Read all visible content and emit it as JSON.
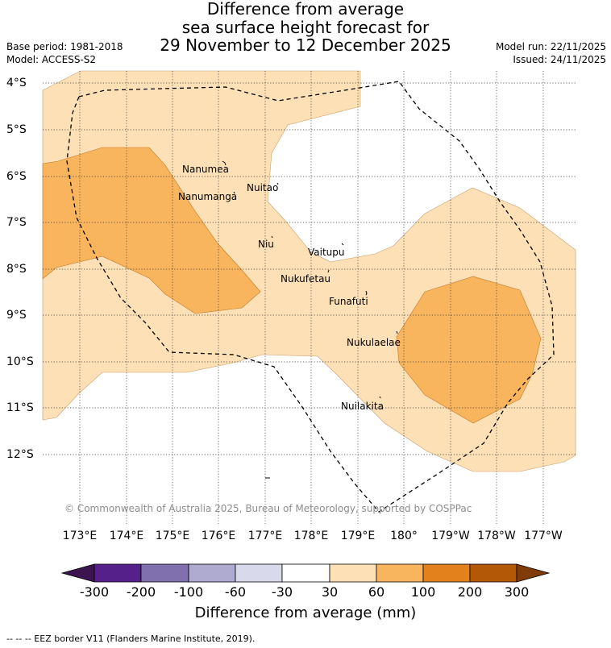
{
  "title": {
    "line1": "Difference from average",
    "line2": "sea surface height forecast for",
    "line3": "29 November to 12 December 2025"
  },
  "meta": {
    "base_period": "Base period: 1981-2018",
    "model": "Model: ACCESS-S2",
    "model_run": "Model run: 22/11/2025",
    "issued": "Issued: 24/11/2025"
  },
  "lat_labels": [
    "4°S",
    "5°S",
    "6°S",
    "7°S",
    "8°S",
    "9°S",
    "10°S",
    "11°S",
    "12°S"
  ],
  "lon_labels": [
    "173°E",
    "174°E",
    "175°E",
    "176°E",
    "177°E",
    "178°E",
    "179°E",
    "180°",
    "179°W",
    "178°W",
    "177°W"
  ],
  "places": [
    "Nanumea",
    "Nuitao",
    "Nanumanga",
    "Niu",
    "Vaitupu",
    "Nukufetau",
    "Funafuti",
    "Nukulaelae",
    "Nuilakita"
  ],
  "copyright": "© Commonwealth of Australia 2025, Bureau of Meteorology, supported by COSPPac",
  "colorbar": {
    "ticks": [
      "-300",
      "-200",
      "-100",
      "-60",
      "-30",
      "30",
      "60",
      "100",
      "200",
      "300"
    ],
    "colors": [
      "#3b1450",
      "#55208a",
      "#8070ae",
      "#aeaad0",
      "#d8d9eb",
      "#ffffff",
      "#fde0b6",
      "#f9b45e",
      "#e3811d",
      "#b35806",
      "#7f3b08"
    ],
    "title": "Difference from average (mm)"
  },
  "eez_note": "--  --  -- EEZ border V11 (Flanders Marine Institute, 2019)."
}
